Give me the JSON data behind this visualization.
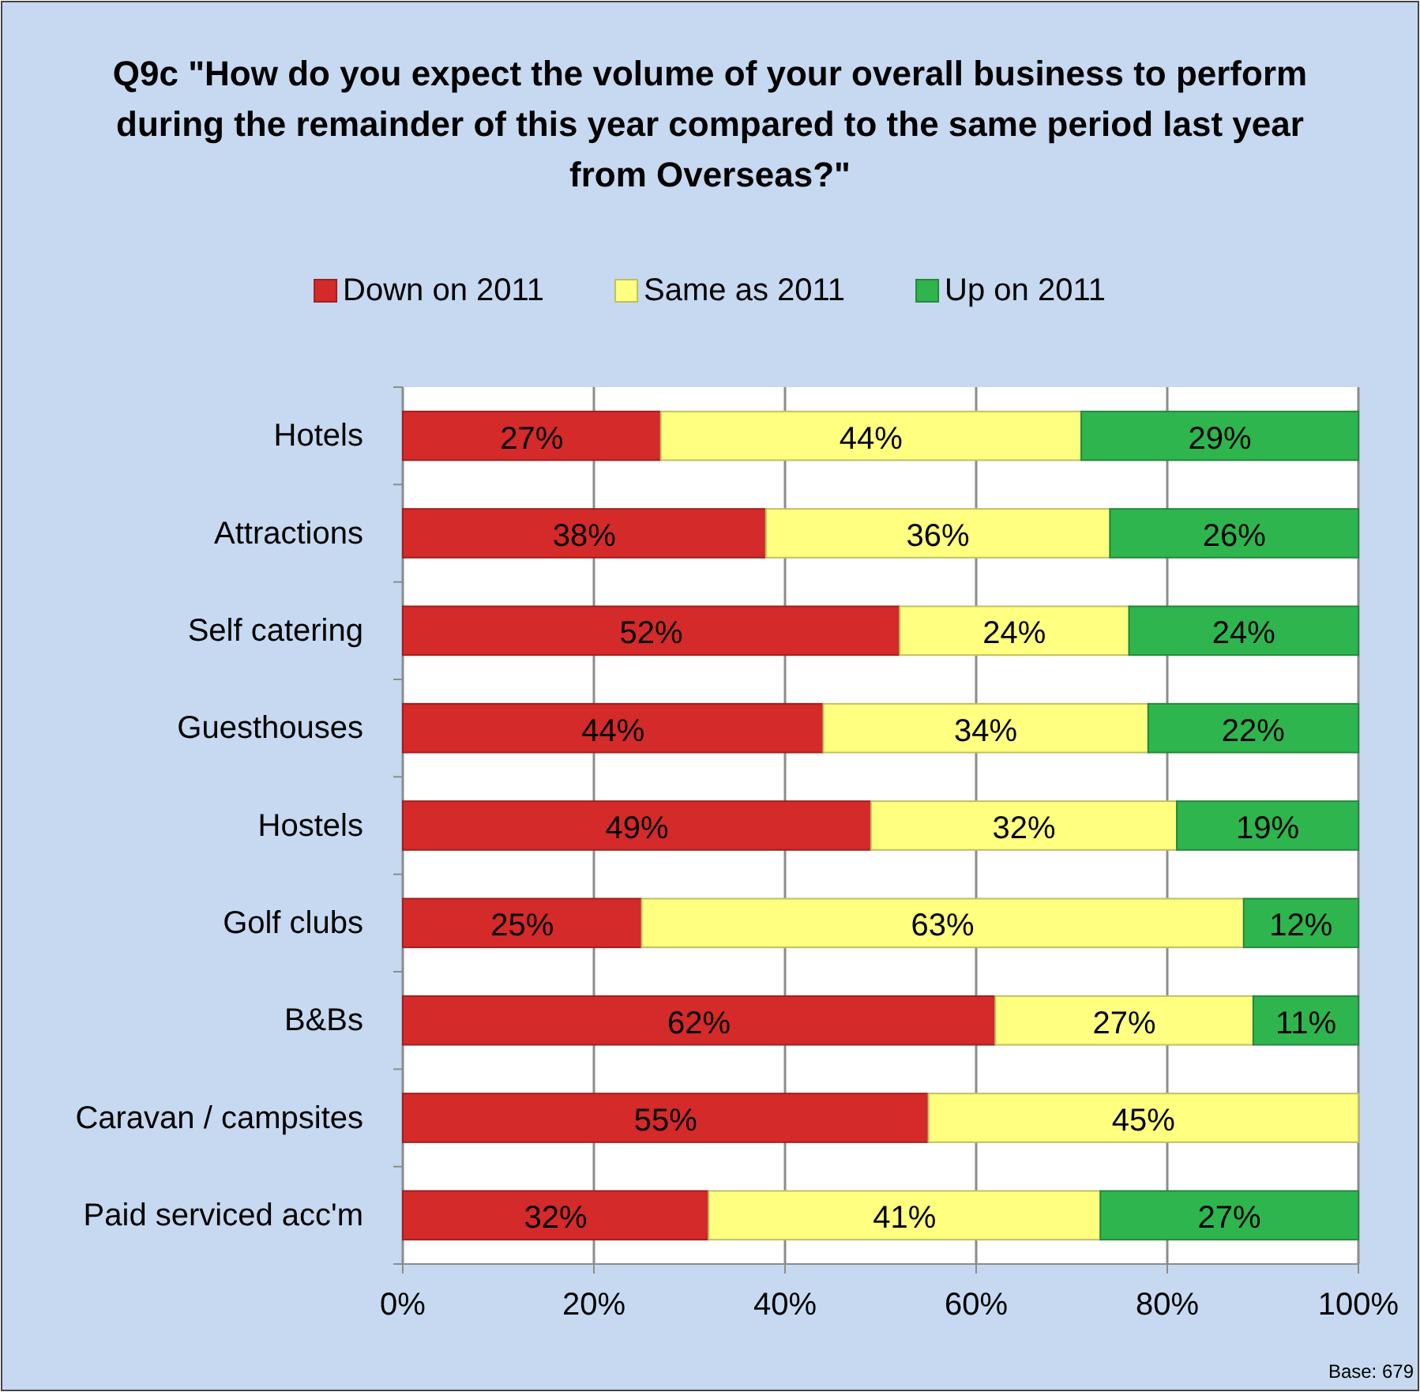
{
  "chart_data": {
    "type": "bar",
    "orientation": "horizontal",
    "stacked": true,
    "title": "Q9c \"How do you expect the volume of your overall business to perform during the remainder of this year compared to the same period last year from Overseas?\"",
    "categories": [
      "Hotels",
      "Attractions",
      "Self catering",
      "Guesthouses",
      "Hostels",
      "Golf clubs",
      "B&Bs",
      "Caravan / campsites",
      "Paid serviced acc'm"
    ],
    "series": [
      {
        "name": "Down on 2011",
        "color": "#d42a2a",
        "values": [
          27,
          38,
          52,
          44,
          49,
          25,
          62,
          55,
          32
        ],
        "value_labels": [
          "27%",
          "38%",
          "52%",
          "44%",
          "49%",
          "25%",
          "62%",
          "55%",
          "32%"
        ]
      },
      {
        "name": "Same as 2011",
        "color": "#ffff80",
        "values": [
          44,
          36,
          24,
          34,
          32,
          63,
          27,
          45,
          41
        ],
        "value_labels": [
          "44%",
          "36%",
          "24%",
          "34%",
          "32%",
          "63%",
          "27%",
          "45%",
          "41%"
        ]
      },
      {
        "name": "Up on 2011",
        "color": "#2fb54e",
        "values": [
          29,
          26,
          24,
          22,
          19,
          12,
          11,
          null,
          27
        ],
        "value_labels": [
          "29%",
          "26%",
          "24%",
          "22%",
          "19%",
          "12%",
          "11%",
          null,
          "27%"
        ]
      }
    ],
    "xlim": [
      0,
      100
    ],
    "xticks": [
      {
        "value": 0,
        "label": "0%"
      },
      {
        "value": 20,
        "label": "20%"
      },
      {
        "value": 40,
        "label": "40%"
      },
      {
        "value": 60,
        "label": "60%"
      },
      {
        "value": 80,
        "label": "80%"
      },
      {
        "value": 100,
        "label": "100%"
      }
    ],
    "grid": "x",
    "legend": "top",
    "annotations": [
      "Base: 679"
    ]
  }
}
